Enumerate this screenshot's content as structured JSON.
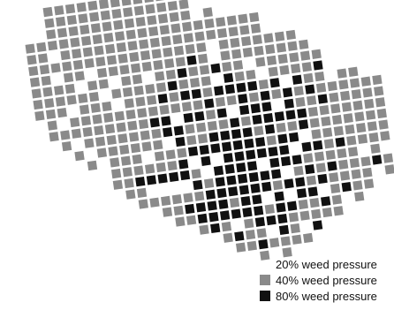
{
  "legend": {
    "items": [
      {
        "label": "20% weed pressure",
        "level": "20%",
        "color": "#ffffff"
      },
      {
        "label": "40% weed pressure",
        "level": "40%",
        "color": "#8a8a8a"
      },
      {
        "label": "80% weed pressure",
        "level": "80%",
        "color": "#111111"
      }
    ]
  },
  "colors": {
    "low": "#ffffff",
    "medium": "#8a8a8a",
    "high": "#111111"
  }
}
